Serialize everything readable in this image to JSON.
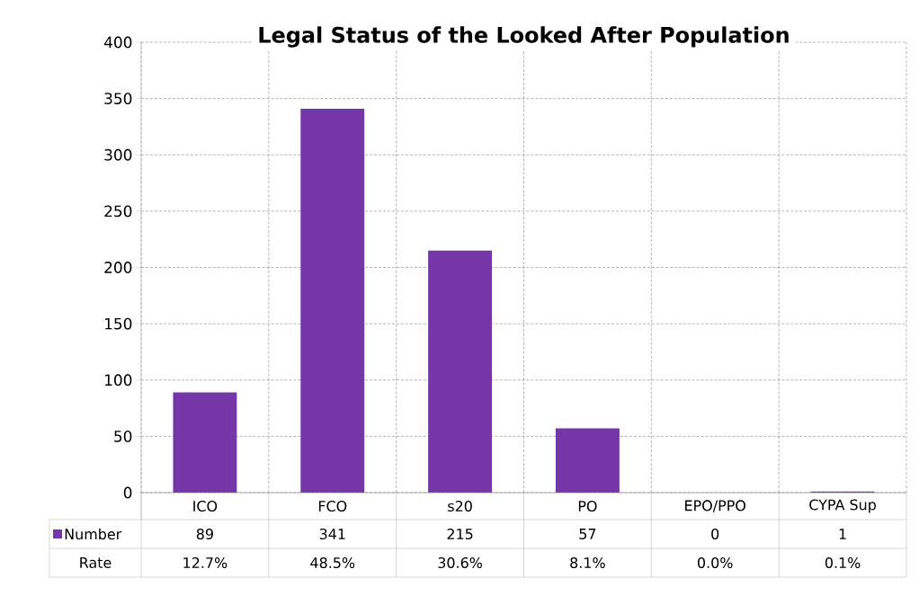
{
  "chart_data": {
    "type": "bar",
    "title": "Legal Status of the Looked After Population",
    "categories": [
      "ICO",
      "FCO",
      "s20",
      "PO",
      "EPO/PPO",
      "CYPA Sup"
    ],
    "series": [
      {
        "name": "Number",
        "color": "#7536a8",
        "values": [
          89,
          341,
          215,
          57,
          0,
          1
        ]
      }
    ],
    "data_labels": true,
    "annotations": [
      "Rate",
      "12.7%",
      "48.5%",
      "30.6%",
      "8.1%",
      "0.0%",
      "0.1%"
    ],
    "ylim": [
      0,
      400
    ],
    "yticks": [
      0,
      50,
      100,
      150,
      200,
      250,
      300,
      350,
      400
    ],
    "grid": true,
    "legend": "bottom"
  }
}
